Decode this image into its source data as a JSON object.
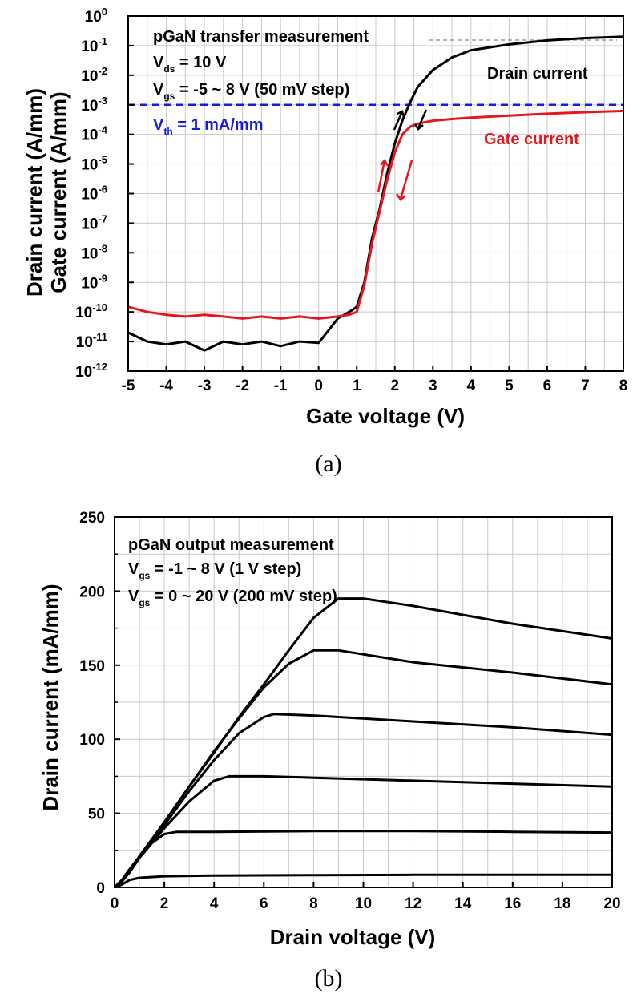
{
  "chart_data": [
    {
      "type": "line",
      "caption": "(a)",
      "xlabel": "Gate voltage (V)",
      "ylabel_lines": [
        "Drain current (A/mm)",
        "Gate current (A/mm)"
      ],
      "xlim": [
        -5,
        8
      ],
      "ylim": [
        1e-12,
        1
      ],
      "yscale": "log",
      "grid": true,
      "xticks": [
        "-5",
        "-4",
        "-3",
        "-2",
        "-1",
        "0",
        "1",
        "2",
        "3",
        "4",
        "5",
        "6",
        "7",
        "8"
      ],
      "yticks": [
        {
          "base": "10",
          "exp": "0"
        },
        {
          "base": "10",
          "exp": "-1"
        },
        {
          "base": "10",
          "exp": "-2"
        },
        {
          "base": "10",
          "exp": "-3"
        },
        {
          "base": "10",
          "exp": "-4"
        },
        {
          "base": "10",
          "exp": "-5"
        },
        {
          "base": "10",
          "exp": "-6"
        },
        {
          "base": "10",
          "exp": "-7"
        },
        {
          "base": "10",
          "exp": "-8"
        },
        {
          "base": "10",
          "exp": "-9"
        },
        {
          "base": "10",
          "exp": "-10"
        },
        {
          "base": "10",
          "exp": "-11"
        },
        {
          "base": "10",
          "exp": "-12"
        }
      ],
      "annotations": {
        "title": "pGaN transfer measurement",
        "vds": {
          "sym": "V",
          "sub": "ds",
          "text": " = 10 V"
        },
        "vgs": {
          "sym": "V",
          "sub": "gs",
          "text": " = -5 ~ 8 V (50 mV step)"
        },
        "vth": {
          "sym": "V",
          "sub": "th",
          "text": " = 1 mA/mm"
        }
      },
      "threshold": {
        "y": 0.001,
        "color": "#1a1adc"
      },
      "series": [
        {
          "name": "Drain current",
          "color": "#000000",
          "x": [
            -5,
            -4.5,
            -4,
            -3.5,
            -3,
            -2.5,
            -2,
            -1.5,
            -1,
            -0.5,
            0,
            0.5,
            0.8,
            0.9,
            1.0,
            1.2,
            1.4,
            1.6,
            1.8,
            2.0,
            2.2,
            2.4,
            2.6,
            3.0,
            3.5,
            4.0,
            5.0,
            6.0,
            7.0,
            8.0
          ],
          "y": [
            2e-11,
            1e-11,
            8e-12,
            1e-11,
            5e-12,
            1e-11,
            8e-12,
            1e-11,
            7e-12,
            1e-11,
            9e-12,
            6e-11,
            1e-10,
            1.2e-10,
            1.5e-10,
            1e-09,
            3e-08,
            3e-07,
            5e-06,
            5e-05,
            0.0003,
            0.0012,
            0.004,
            0.015,
            0.04,
            0.07,
            0.11,
            0.15,
            0.18,
            0.2
          ]
        },
        {
          "name": "Gate current",
          "color": "#e8141e",
          "x": [
            -5,
            -4.5,
            -4,
            -3.5,
            -3,
            -2.5,
            -2,
            -1.5,
            -1,
            -0.5,
            0,
            0.5,
            0.8,
            0.9,
            1.0,
            1.2,
            1.4,
            1.6,
            1.8,
            2.0,
            2.2,
            2.4,
            2.6,
            3.0,
            3.5,
            4.0,
            5.0,
            6.0,
            7.0,
            8.0
          ],
          "y": [
            1.5e-10,
            1e-10,
            8e-11,
            7e-11,
            8e-11,
            7e-11,
            6e-11,
            7e-11,
            6e-11,
            7e-11,
            6e-11,
            7e-11,
            8e-11,
            9e-11,
            1e-10,
            8e-10,
            2e-08,
            2.5e-07,
            3e-06,
            2.5e-05,
            0.0001,
            0.00018,
            0.00023,
            0.00029,
            0.00033,
            0.00037,
            0.00043,
            0.0005,
            0.00056,
            0.00062
          ]
        }
      ]
    },
    {
      "type": "line",
      "caption": "(b)",
      "xlabel": "Drain voltage (V)",
      "ylabel": "Drain current (mA/mm)",
      "xlim": [
        0,
        20
      ],
      "ylim": [
        0,
        250
      ],
      "grid": true,
      "xticks": [
        "0",
        "2",
        "4",
        "6",
        "8",
        "10",
        "12",
        "14",
        "16",
        "18",
        "20"
      ],
      "yticks": [
        "0",
        "50",
        "100",
        "150",
        "200",
        "250"
      ],
      "annotations": {
        "title": "pGaN output measurement",
        "vgs1": {
          "sym": "V",
          "sub": "gs",
          "text": " = -1 ~ 8 V (1 V step)"
        },
        "vgs2": {
          "sym": "V",
          "sub": "gs",
          "text": " = 0 ~ 20 V (200 mV step)"
        }
      },
      "series": [
        {
          "x": [
            0,
            0.3,
            0.6,
            1,
            2,
            4,
            8,
            12,
            16,
            20
          ],
          "y": [
            0,
            2,
            5,
            6.5,
            7.5,
            8,
            8.3,
            8.5,
            8.5,
            8.5
          ]
        },
        {
          "x": [
            0,
            0.3,
            0.6,
            1,
            1.5,
            2,
            2.5,
            4,
            8,
            12,
            16,
            20
          ],
          "y": [
            0,
            4,
            10,
            20,
            30,
            36,
            37.5,
            37.5,
            38,
            38,
            37.5,
            37
          ]
        },
        {
          "x": [
            0,
            0.3,
            0.6,
            1,
            2,
            3,
            4,
            4.6,
            6,
            8,
            12,
            16,
            20
          ],
          "y": [
            0,
            5,
            11,
            20,
            40,
            58,
            72,
            75,
            75,
            74,
            72,
            70,
            68
          ]
        },
        {
          "x": [
            0,
            0.3,
            0.6,
            1,
            2,
            3,
            4,
            5,
            6,
            6.4,
            8,
            12,
            16,
            20
          ],
          "y": [
            0,
            5,
            12,
            20,
            42,
            65,
            86,
            104,
            115,
            117,
            116,
            112,
            108,
            103
          ]
        },
        {
          "x": [
            0,
            0.3,
            0.6,
            1,
            2,
            3,
            4,
            5,
            6,
            7,
            8,
            9,
            12,
            16,
            20
          ],
          "y": [
            0,
            5,
            12,
            21,
            44,
            68,
            92,
            114,
            135,
            151,
            160,
            160,
            152,
            145,
            137
          ]
        },
        {
          "x": [
            0,
            0.3,
            0.6,
            1,
            2,
            3,
            4,
            5,
            6,
            7,
            8,
            9,
            10,
            12,
            16,
            20
          ],
          "y": [
            0,
            5,
            12,
            21,
            44,
            68,
            91,
            115,
            137,
            160,
            182,
            195,
            195,
            190,
            178,
            168
          ]
        }
      ]
    }
  ]
}
